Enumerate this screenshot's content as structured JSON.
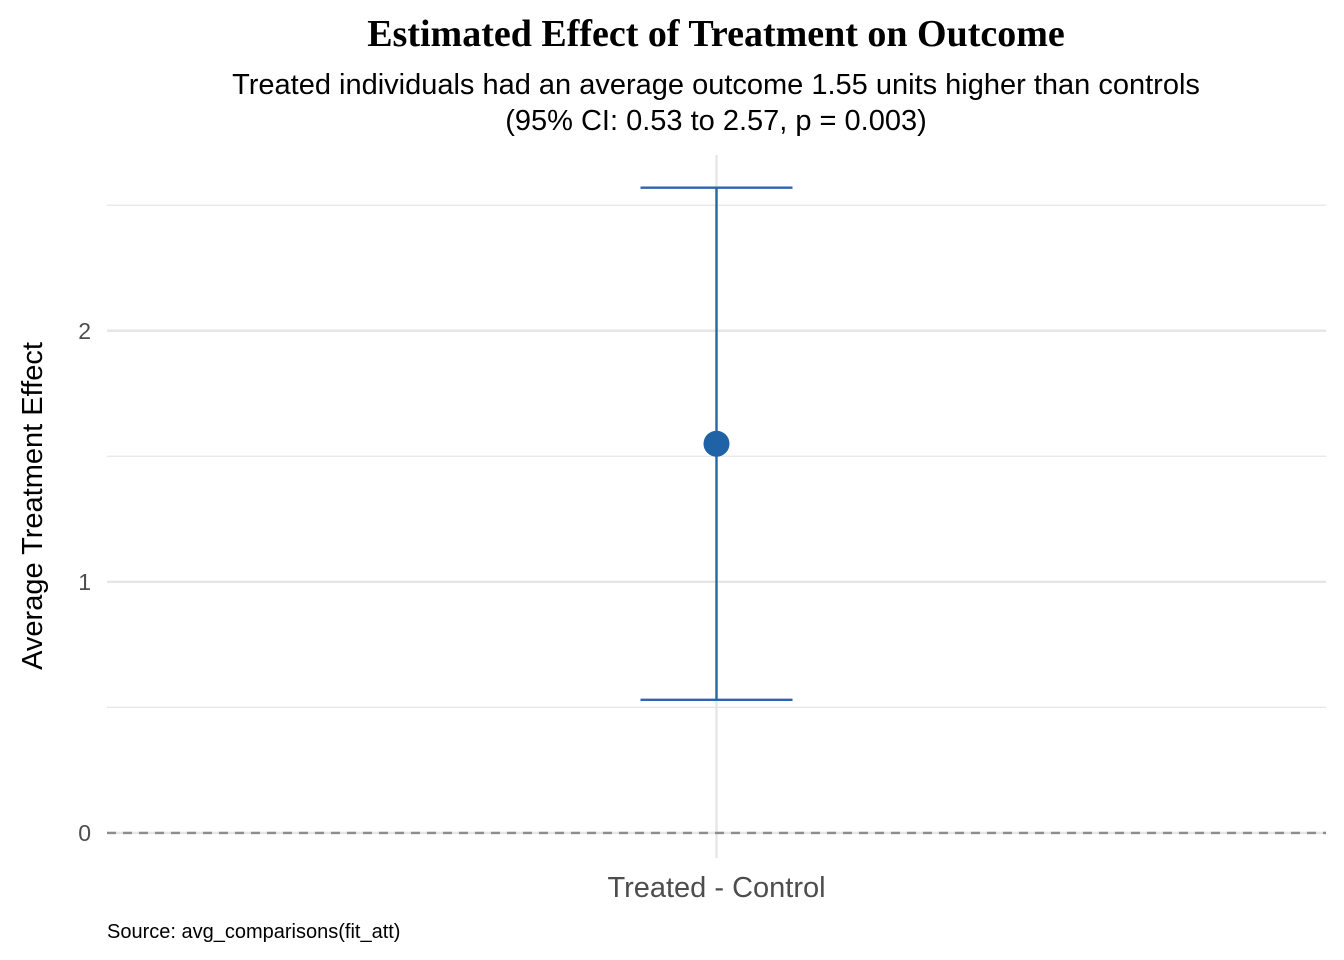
{
  "chart_data": {
    "type": "errorbar",
    "title": "Estimated Effect of Treatment on Outcome",
    "subtitle_lines": [
      "Treated individuals had an average outcome 1.55 units higher than controls",
      "(95% CI: 0.53 to 2.57, p = 0.003)"
    ],
    "xlabel": "",
    "ylabel": "Average Treatment Effect",
    "caption": "Source: avg_comparisons(fit_att)",
    "categories": [
      "Treated - Control"
    ],
    "estimate": [
      1.55
    ],
    "ci_low": [
      0.53
    ],
    "ci_high": [
      2.57
    ],
    "ylim": [
      -0.1,
      2.7
    ],
    "y_major_ticks": [
      0,
      1,
      2
    ],
    "y_tick_labels": [
      "0",
      "1",
      "2"
    ],
    "y_minor_gridlines": [
      0.5,
      1.5,
      2.5
    ],
    "reference_line": {
      "y": 0,
      "style": "dashed"
    },
    "grid": true,
    "legend": "none",
    "colors": {
      "point": "#1f62a5",
      "errorbar": "#2b66a6",
      "grid": "#e6e6e6",
      "reference_line": "#8c8c8c"
    }
  }
}
